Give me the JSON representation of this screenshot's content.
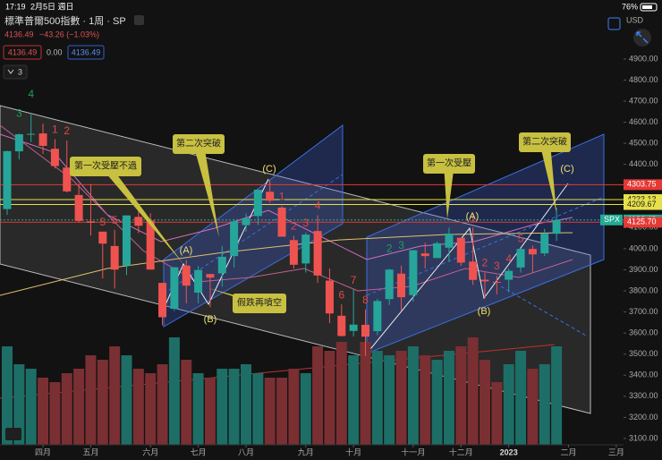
{
  "status": {
    "time": "17:19",
    "date": "2月5日 週日",
    "battery": "76%"
  },
  "header": {
    "title": "標準普爾500指數 · 1周 · SP",
    "last": "4136.49",
    "change": "−43.26 (−1.03%)",
    "bid": "4136.49",
    "spread": "0.00",
    "ask": "4136.49",
    "indicators": "3",
    "currency": "USD"
  },
  "chart_data": {
    "type": "candlestick",
    "open": [
      4188,
      4462,
      4541,
      4547,
      4474,
      4385,
      4255,
      4130,
      4081,
      4013,
      3920,
      4151,
      4134,
      3838,
      3715,
      3920,
      3792,
      3880,
      3883,
      3965,
      4112,
      4155,
      4270,
      4195,
      4041,
      3930,
      4084,
      3849,
      3682,
      3610,
      3639,
      3609,
      3761,
      3882,
      3780,
      3978,
      3956,
      4005,
      4052,
      3939,
      3853,
      3843,
      3853,
      3911,
      3999,
      3978,
      4071
    ],
    "high": [
      4465,
      4546,
      4637,
      4593,
      4520,
      4513,
      4308,
      4307,
      4081,
      4090,
      4158,
      4204,
      4168,
      3838,
      3913,
      3946,
      3918,
      3880,
      4013,
      4140,
      4167,
      4280,
      4325,
      4203,
      4062,
      4077,
      4159,
      3906,
      3736,
      3806,
      3712,
      3762,
      3905,
      3920,
      3993,
      4029,
      4034,
      4100,
      4052,
      4101,
      3888,
      3872,
      3906,
      4003,
      4015,
      4094,
      4195
    ],
    "low": [
      4161,
      4424,
      4506,
      4450,
      4381,
      4267,
      4124,
      4062,
      3859,
      3811,
      3875,
      4074,
      3901,
      3637,
      3705,
      3741,
      3742,
      3722,
      3820,
      3911,
      4080,
      4112,
      4218,
      4057,
      3906,
      3887,
      3838,
      3647,
      3584,
      3584,
      3491,
      3590,
      3733,
      3706,
      3749,
      3906,
      3956,
      3938,
      3918,
      3828,
      3764,
      3783,
      3794,
      3887,
      3885,
      3965,
      4037
    ],
    "close": [
      4463,
      4543,
      4545,
      4488,
      4392,
      4272,
      4132,
      4123,
      4024,
      3901,
      4158,
      4109,
      3901,
      3675,
      3912,
      3825,
      3899,
      3863,
      3962,
      4130,
      4145,
      4280,
      4228,
      4057,
      3924,
      4067,
      3873,
      3693,
      3586,
      3640,
      3583,
      3752,
      3901,
      3770,
      3993,
      3965,
      4026,
      4072,
      3934,
      3852,
      3845,
      3840,
      3895,
      3999,
      3973,
      4071,
      4136
    ],
    "volume": [
      22,
      18,
      17,
      15,
      14,
      16,
      17,
      20,
      19,
      22,
      20,
      17,
      16,
      18,
      24,
      19,
      16,
      15,
      17,
      17,
      18,
      16,
      15,
      15,
      17,
      16,
      22,
      21,
      23,
      20,
      23,
      21,
      20,
      21,
      22,
      20,
      19,
      21,
      22,
      24,
      19,
      14,
      18,
      21,
      17,
      18,
      22
    ],
    "counts_up": [
      null,
      "3",
      "4",
      null,
      null,
      null,
      null,
      null,
      null,
      null,
      null,
      null,
      null,
      null,
      null,
      null,
      null,
      null,
      null,
      null,
      null,
      null,
      null,
      null,
      null,
      null,
      null,
      null,
      null,
      null,
      null,
      null,
      "2",
      "3",
      null,
      null,
      null,
      null,
      null,
      null,
      null,
      null,
      null,
      null,
      null,
      null,
      null
    ],
    "counts_down": [
      null,
      null,
      null,
      null,
      "1",
      "2",
      null,
      null,
      "5",
      "5",
      null,
      null,
      null,
      null,
      null,
      null,
      null,
      null,
      null,
      null,
      null,
      null,
      null,
      "1",
      "2",
      "3",
      "4",
      null,
      "6",
      "7",
      "8",
      null,
      null,
      null,
      null,
      null,
      null,
      null,
      null,
      "1",
      "2",
      "3",
      "4",
      "5",
      null,
      null,
      null
    ],
    "up_color": "#26a69a",
    "down_color": "#ef5350",
    "ylim": [
      3070,
      5010
    ],
    "yticks": [
      {
        "value": 3100,
        "label": "3100.00"
      },
      {
        "value": 3200,
        "label": "3200.00"
      },
      {
        "value": 3300,
        "label": "3300.00"
      },
      {
        "value": 3400,
        "label": "3400.00"
      },
      {
        "value": 3500,
        "label": "3500.00"
      },
      {
        "value": 3600,
        "label": "3600.00"
      },
      {
        "value": 3700,
        "label": "3700.00"
      },
      {
        "value": 3800,
        "label": "3800.00"
      },
      {
        "value": 3900,
        "label": "3900.00"
      },
      {
        "value": 4000,
        "label": "4000.00"
      },
      {
        "value": 4100,
        "label": "4100.00"
      },
      {
        "value": 4200,
        "label": "4200.00"
      },
      {
        "value": 4300,
        "label": "4300.00"
      },
      {
        "value": 4400,
        "label": "4400.00"
      },
      {
        "value": 4500,
        "label": "4500.00"
      },
      {
        "value": 4600,
        "label": "4600.00"
      },
      {
        "value": 4700,
        "label": "4700.00"
      },
      {
        "value": 4800,
        "label": "4800.00"
      },
      {
        "value": 4900,
        "label": "4900.00"
      }
    ],
    "xticks": [
      {
        "value": 3,
        "label": "四月"
      },
      {
        "value": 7,
        "label": "五月"
      },
      {
        "value": 12,
        "label": "六月"
      },
      {
        "value": 16,
        "label": "七月"
      },
      {
        "value": 20,
        "label": "八月"
      },
      {
        "value": 25,
        "label": "九月"
      },
      {
        "value": 29,
        "label": "十月"
      },
      {
        "value": 34,
        "label": "十一月"
      },
      {
        "value": 38,
        "label": "十二月"
      },
      {
        "value": 42,
        "label": "2023"
      },
      {
        "value": 47,
        "label": "二月"
      },
      {
        "value": 51,
        "label": "三月"
      }
    ],
    "price_lines": [
      {
        "value": 4303.75,
        "color": "#e53935"
      },
      {
        "value": 4233.13,
        "color": "#e6e04a"
      },
      {
        "value": 4209.67,
        "color": "#e6e04a"
      },
      {
        "value": 4136.49,
        "color": "#22ab94",
        "name": "SPX"
      },
      {
        "value": 4125.7,
        "label": "4125.70",
        "color": "#e53935"
      }
    ],
    "callouts": [
      "第一次受壓不過",
      "第二次突破",
      "假跌再噴空",
      "第一次受壓",
      "第二次突破"
    ],
    "waves": [
      "(A)",
      "(B)",
      "(C)",
      "(A)",
      "(B)",
      "(C)"
    ]
  }
}
